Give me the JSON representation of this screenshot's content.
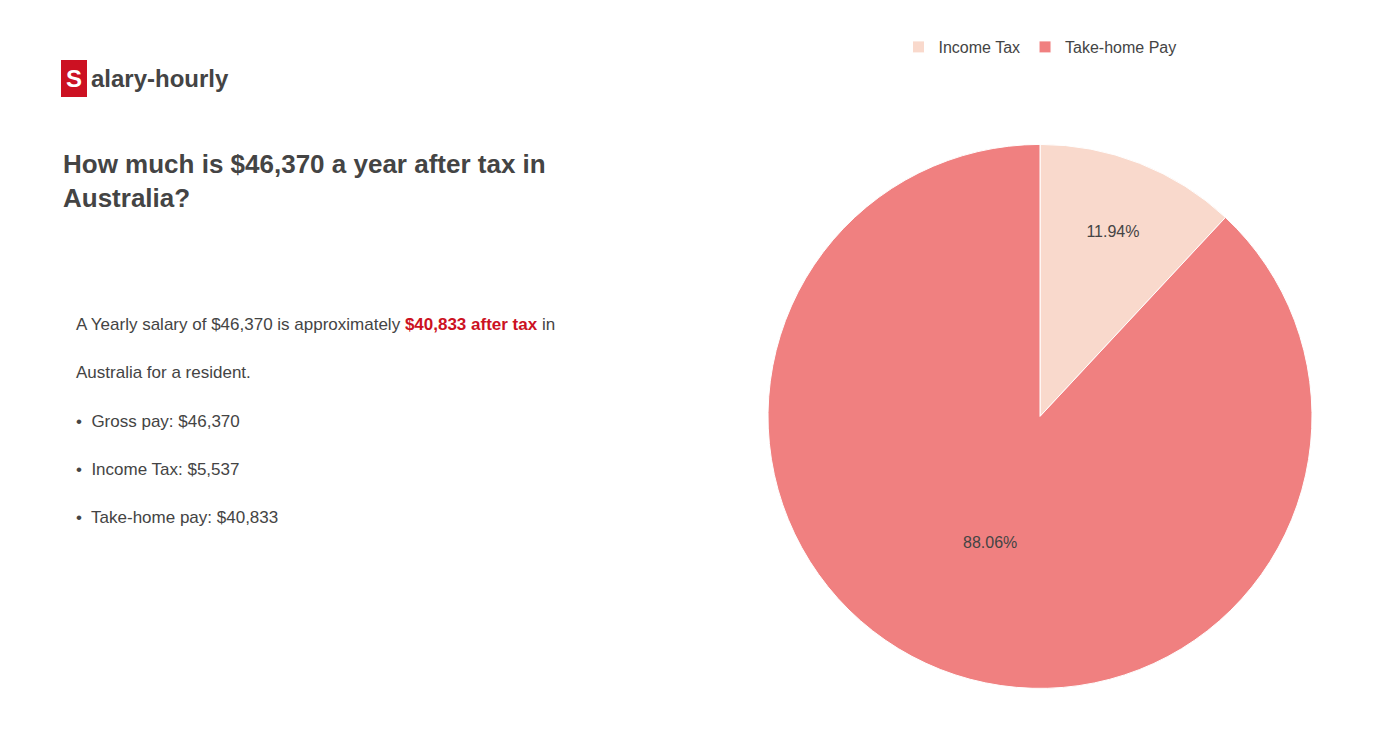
{
  "chart_data": {
    "type": "pie",
    "title": "How much is $46,370 a year after tax in\nAustralia?",
    "categories": [
      "Income Tax",
      "Take-home Pay"
    ],
    "values": [
      11.94,
      88.06
    ],
    "value_labels": [
      "11.94%",
      "88.06%"
    ],
    "colors": [
      "#f9d9cc",
      "#f08080"
    ],
    "data_labels": true,
    "legend": "top",
    "annotations": [
      [
        {
          "text": "S",
          "color": "#cc1122"
        },
        {
          "text": "alary-hourly"
        }
      ],
      [
        {
          "text": "A Yearly salary of $46,370 is approximately "
        },
        {
          "text": "$40,833 after tax",
          "color": "#cc1122"
        },
        {
          "text": " in"
        }
      ],
      [
        {
          "text": "Australia for a resident."
        }
      ],
      [
        {
          "text": "•  Gross pay: $46,370"
        }
      ],
      [
        {
          "text": "•  Income Tax: $5,537"
        }
      ],
      [
        {
          "text": "•  Take-home pay: $40,833"
        }
      ]
    ]
  }
}
